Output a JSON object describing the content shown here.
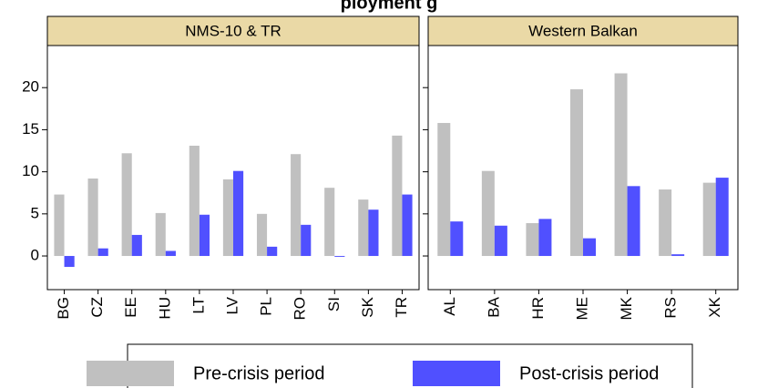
{
  "title": "ployment g",
  "chart_data": [
    {
      "type": "bar",
      "title": "NMS-10 & TR",
      "categories": [
        "BG",
        "CZ",
        "EE",
        "HU",
        "LT",
        "LV",
        "PL",
        "RO",
        "SI",
        "SK",
        "TR"
      ],
      "series": [
        {
          "name": "Pre-crisis period",
          "color": "#c0c0c0",
          "values": [
            7.3,
            9.2,
            12.2,
            5.1,
            13.1,
            9.1,
            5.0,
            12.1,
            8.1,
            6.7,
            14.3
          ]
        },
        {
          "name": "Post-crisis period",
          "color": "#5050ff",
          "values": [
            -1.3,
            0.9,
            2.5,
            0.6,
            4.9,
            10.1,
            1.1,
            3.7,
            -0.1,
            5.5,
            7.3
          ]
        }
      ],
      "ylim": [
        -4,
        25
      ],
      "yticks": [
        0,
        5,
        10,
        15,
        20
      ]
    },
    {
      "type": "bar",
      "title": "Western Balkan",
      "categories": [
        "AL",
        "BA",
        "HR",
        "ME",
        "MK",
        "RS",
        "XK"
      ],
      "series": [
        {
          "color": "#c0c0c0",
          "values": [
            15.8,
            10.1,
            3.9,
            19.8,
            21.7,
            7.9,
            8.7
          ]
        },
        {
          "color": "#5050ff",
          "values": [
            4.1,
            3.6,
            4.4,
            2.1,
            8.3,
            0.2,
            9.3
          ]
        }
      ],
      "ylim": [
        -4,
        25
      ],
      "yticks": [
        0,
        5,
        10,
        15,
        20
      ]
    }
  ]
}
